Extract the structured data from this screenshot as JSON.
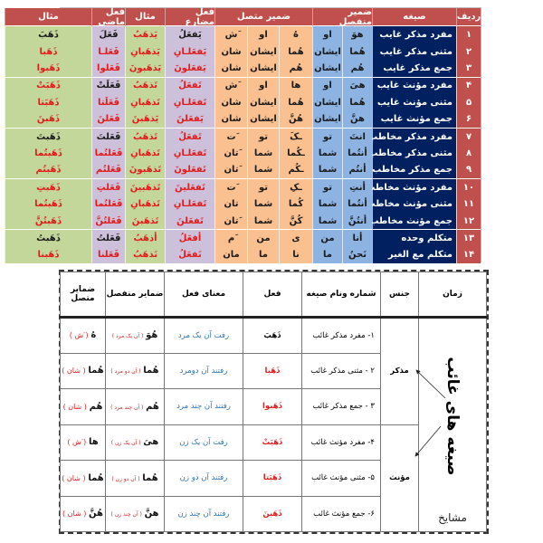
{
  "top_table": {
    "headers": {
      "radif": "ردیف",
      "sigheh": "صیغه",
      "zamir_monfasel": "ضمیر منفصل",
      "zamir_mottasel": "ضمیر متصل",
      "fel_mozare": "فعل مضارع",
      "mesal1": "مثال",
      "fel_mazi": "فعل ماضی",
      "mesal2": "مثال"
    },
    "rows": [
      {
        "num": "۱",
        "sig": "مفرد مذکر غایب",
        "mon_ar": "هوَ",
        "mon_fa": "او",
        "mot_ar": "هُ",
        "mot_fa": "او",
        "mot_fa2": "َش",
        "mozare": "یَفعَلُ",
        "mozare_red": "",
        "ex_mozare": "یَذهَبُ",
        "mazi": "فَعَلَ",
        "mazi_red": "",
        "ex_mazi": "ذَهَبَ",
        "ex_mazi_red": ""
      },
      {
        "num": "۲",
        "sig": "مثنی مذکر غایب",
        "mon_ar": "هُما",
        "mon_fa": "ایشان",
        "mot_ar": "هُما",
        "mot_fa": "ایشان",
        "mot_fa2": "شان",
        "mozare": "یَفعَلـانِ",
        "mozare_red": "all",
        "ex_mozare": "یَذهَبانِ",
        "mazi": "فَعَلـا",
        "mazi_red": "all",
        "ex_mazi": "ذَهَبا",
        "ex_mazi_red": "all"
      },
      {
        "num": "۳",
        "sig": "جمع مذکر غایب",
        "mon_ar": "هُم",
        "mon_fa": "ایشان",
        "mot_ar": "هُم",
        "mot_fa": "ایشان",
        "mot_fa2": "شان",
        "mozare": "یَفعَلونَ",
        "mozare_red": "all",
        "ex_mozare": "یَذهَبونَ",
        "mazi": "فَعَلوا",
        "mazi_red": "all",
        "ex_mazi": "ذَهَبوا",
        "ex_mazi_red": "all"
      },
      {
        "num": "۴",
        "sig": "مفرد مؤنث غایب",
        "mon_ar": "هیَ",
        "mon_fa": "او",
        "mot_ar": "ها",
        "mot_fa": "او",
        "mot_fa2": "َش",
        "mozare": "تَفعَلُ",
        "mozare_red": "all",
        "ex_mozare": "تَذهَبُ",
        "mazi": "فَعَلَتْ",
        "mazi_red": "",
        "ex_mazi": "ذَهَبَتْ",
        "ex_mazi_red": "all"
      },
      {
        "num": "۵",
        "sig": "مثنی مؤنث غایب",
        "mon_ar": "هُما",
        "mon_fa": "ایشان",
        "mot_ar": "هُما",
        "mot_fa": "ایشان",
        "mot_fa2": "شان",
        "mozare": "تَفعَلـانِ",
        "mozare_red": "all",
        "ex_mozare": "تَذهَبانِ",
        "mazi": "فَعَلَتا",
        "mazi_red": "all",
        "ex_mazi": "ذَهَبَتا",
        "ex_mazi_red": "all"
      },
      {
        "num": "۶",
        "sig": "جمع مؤنث غایب",
        "mon_ar": "هنَّ",
        "mon_fa": "ایشان",
        "mot_ar": "هُنَّ",
        "mot_fa": "ایشان",
        "mot_fa2": "شان",
        "mozare": "یَفعَلنَ",
        "mozare_red": "all",
        "ex_mozare": "یَذهَبنَ",
        "mazi": "فَعَلنَ",
        "mazi_red": "all",
        "ex_mazi": "ذَهَبنَ",
        "ex_mazi_red": "all"
      },
      {
        "num": "۷",
        "sig": "مفرد مذکر مخاطب",
        "mon_ar": "انتَ",
        "mon_fa": "تو",
        "mot_ar": "ـکَ",
        "mot_fa": "تو",
        "mot_fa2": "َت",
        "mozare": "تَفعَلُ",
        "mozare_red": "all",
        "ex_mozare": "تَذهَبُ",
        "mazi": "فَعَلتَ",
        "mazi_red": "",
        "ex_mazi": "ذَهَبتَ",
        "ex_mazi_red": ""
      },
      {
        "num": "۸",
        "sig": "مثنی مذکر مخاطب",
        "mon_ar": "أنتُما",
        "mon_fa": "شما",
        "mot_ar": "ـکُما",
        "mot_fa": "شما",
        "mot_fa2": "َتان",
        "mozare": "تَفعَلـانِ",
        "mozare_red": "all",
        "ex_mozare": "تَذهَبانِ",
        "mazi": "فَعَلتُما",
        "mazi_red": "all",
        "ex_mazi": "ذَهَبتُما",
        "ex_mazi_red": "all"
      },
      {
        "num": "۹",
        "sig": "جمع مذکر مخاطب",
        "mon_ar": "أنتُم",
        "mon_fa": "شما",
        "mot_ar": "ـکُم",
        "mot_fa": "شما",
        "mot_fa2": "َتان",
        "mozare": "تَفعَلونَ",
        "mozare_red": "all",
        "ex_mozare": "تَذهَبونَ",
        "mazi": "فَعَلتُم",
        "mazi_red": "all",
        "ex_mazi": "ذَهَبتُم",
        "ex_mazi_red": "all"
      },
      {
        "num": "۱۰",
        "sig": "مفرد مؤنث مخاطب",
        "mon_ar": "أنتِ",
        "mon_fa": "تو",
        "mot_ar": "ـکِ",
        "mot_fa": "تو",
        "mot_fa2": "َت",
        "mozare": "تَفعَلینَ",
        "mozare_red": "all",
        "ex_mozare": "تَذهَبینَ",
        "mazi": "فَعَلتِ",
        "mazi_red": "all",
        "ex_mazi": "ذَهَبتِ",
        "ex_mazi_red": "all"
      },
      {
        "num": "۱۱",
        "sig": "مثنی مؤنث مخاطب",
        "mon_ar": "أنتُما",
        "mon_fa": "شما",
        "mot_ar": "کُما",
        "mot_fa": "شما",
        "mot_fa2": "تان",
        "mozare": "تَفعَلـانِ",
        "mozare_red": "all",
        "ex_mozare": "تَذهَبانِ",
        "mazi": "فَعَلتُما",
        "mazi_red": "all",
        "ex_mazi": "ذَهَبتُما",
        "ex_mazi_red": "all"
      },
      {
        "num": "۱۲",
        "sig": "جمع مؤنث مخاطب",
        "mon_ar": "أنتُنَّ",
        "mon_fa": "شما",
        "mot_ar": "کُنَّ",
        "mot_fa": "شما",
        "mot_fa2": "َتان",
        "mozare": "تَفعَلنَ",
        "mozare_red": "all",
        "ex_mozare": "تَذهَبنَ",
        "mazi": "فَعَلتُنَّ",
        "mazi_red": "all",
        "ex_mazi": "ذَهَبتُنَّ",
        "ex_mazi_red": "all"
      },
      {
        "num": "۱۳",
        "sig": "متکلم      وحده",
        "mon_ar": "أنا",
        "mon_fa": "من",
        "mot_ar": "ی",
        "mot_fa": "من",
        "mot_fa2": "َم",
        "mozare": "أفعَلُ",
        "mozare_red": "all",
        "ex_mozare": "أذهَبُ",
        "mazi": "فَعَلتُ",
        "mazi_red": "",
        "ex_mazi": "ذَهَبتُ",
        "ex_mazi_red": ""
      },
      {
        "num": "۱۴",
        "sig": "متکلم    مع الغیر",
        "mon_ar": "نَحنُ",
        "mon_fa": "ما",
        "mot_ar": "نا",
        "mot_fa": "ما",
        "mot_fa2": "مان",
        "mozare": "نَفعَلُ",
        "mozare_red": "all",
        "ex_mozare": "نَذهَبُ",
        "mazi": "فَعَلنا",
        "mazi_red": "all",
        "ex_mazi": "ذَهَبنا",
        "ex_mazi_red": "all"
      }
    ]
  },
  "bottom_table": {
    "headers": {
      "zaman": "زمان",
      "jens": "جنس",
      "shomare": "شماره ونام صیغه",
      "fel": "فعل",
      "mana": "معنای فعل",
      "monfasel": "ضمایر منفصل",
      "mottasel": "ضمایر متصل"
    },
    "side_title": "صیغه های غائب",
    "side_footer": "مشایخ",
    "gender_masc": "مذکر",
    "gender_fem": "مؤنث",
    "rows": [
      {
        "sig": "۱- مفرد مذکر غائب",
        "verb": "ذَهَبَ",
        "verb_red": "",
        "meaning": "رفت آن یک مرد",
        "mon": "هُوَ",
        "mon_note": "( آن یک مرد )",
        "mot": "هُ",
        "mot_note": "( َش )"
      },
      {
        "sig": "۲ - مثنی مذکر غائب",
        "verb": "ذَهَبا",
        "verb_red": "red",
        "meaning": "رفتند آن دومرد",
        "mon": "هُما",
        "mon_note": "( آن دو مرد )",
        "mot": "هُما",
        "mot_note": "( شان )"
      },
      {
        "sig": "۳ - جمع مذکر غائب",
        "verb": "ذَهَبوا",
        "verb_red": "red",
        "meaning": "رفتند آن چند مرد",
        "mon": "هُم",
        "mon_note": "( آن چند مرد )",
        "mot": "هُم",
        "mot_note": "( شان )"
      },
      {
        "sig": "۴- مفرد مؤنث غائب",
        "verb": "ذَهَبَتْ",
        "verb_red": "red",
        "meaning": "رفت آن یک زن",
        "mon": "هیَ",
        "mon_note": "( آن یک زن )",
        "mot": "ها",
        "mot_note": "( َش )"
      },
      {
        "sig": "۵- مثنی مؤنث غائب",
        "verb": "ذَهَبَتا",
        "verb_red": "red",
        "meaning": "رفتند آن دو زن",
        "mon": "هُما",
        "mon_note": "( آن دو زن )",
        "mot": "هُما",
        "mot_note": "( شان )"
      },
      {
        "sig": "۶- جمع مؤنث غائب",
        "verb": "ذَهَبنَ",
        "verb_red": "red",
        "meaning": "رفتند آن چند زن",
        "mon": "هنَّ",
        "mon_note": "( آن چند زن )",
        "mot": "هُنَّ",
        "mot_note": "( شان )"
      }
    ]
  },
  "colors": {
    "header_red": "#c0504d",
    "sigheh_navy": "#002060",
    "blue": "#8db3e2",
    "orange": "#fac090",
    "purple": "#ccc0da",
    "green": "#c4d79b",
    "highlight_red": "#e31b1b",
    "meaning_blue": "#2e75b6"
  }
}
